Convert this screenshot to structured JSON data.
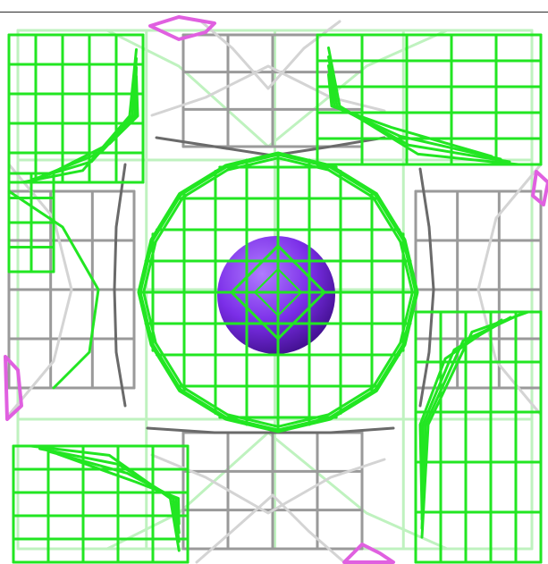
{
  "colors": {
    "background": "#ffffff",
    "frame_border": "#2b2b2b",
    "green_mesh": "#22e622",
    "green_mesh_faint": "#bff2bf",
    "gray_frame": "#9a9a9a",
    "gray_frame_light": "#d4d4d4",
    "gray_frame_dark": "#6a6a6a",
    "magenta_atom": "#e060e0",
    "purple_sphere": "#7b2ee8",
    "purple_sphere_dark": "#4a139c",
    "purple_sphere_light": "#a36cf5"
  },
  "icons": {
    "central_atom": "purple-sphere-icon",
    "corner_atoms": "magenta-atom-icon"
  }
}
